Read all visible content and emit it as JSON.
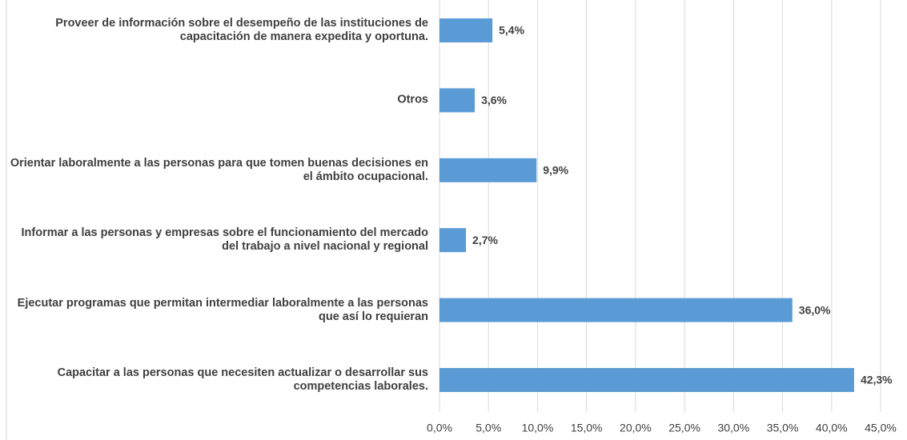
{
  "chart_data": {
    "type": "bar",
    "orientation": "horizontal",
    "categories": [
      "Proveer de información sobre el desempeño de las instituciones de capacitación de manera expedita y oportuna.",
      "Otros",
      "Orientar laboralmente a las personas para que tomen buenas decisiones en el ámbito ocupacional.",
      "Informar a las personas y empresas sobre el funcionamiento del mercado del trabajo a nivel nacional y regional",
      "Ejecutar programas que permitan intermediar laboralmente a las personas que así lo requieran",
      "Capacitar a las personas que necesiten actualizar o desarrollar sus competencias laborales."
    ],
    "values": [
      5.4,
      3.6,
      9.9,
      2.7,
      36.0,
      42.3
    ],
    "value_labels": [
      "5,4%",
      "3,6%",
      "9,9%",
      "2,7%",
      "36,0%",
      "42,3%"
    ],
    "color": "#5b9bd5",
    "xlim": [
      0,
      45
    ],
    "xticks": [
      {
        "value": 0,
        "label": "0,0%"
      },
      {
        "value": 5,
        "label": "5,0%"
      },
      {
        "value": 10,
        "label": "10,0%"
      },
      {
        "value": 15,
        "label": "15,0%"
      },
      {
        "value": 20,
        "label": "20,0%"
      },
      {
        "value": 25,
        "label": "25,0%"
      },
      {
        "value": 30,
        "label": "30,0%"
      },
      {
        "value": 35,
        "label": "35,0%"
      },
      {
        "value": 40,
        "label": "40,0%"
      },
      {
        "value": 45,
        "label": "45,0%"
      }
    ],
    "grid": true
  }
}
